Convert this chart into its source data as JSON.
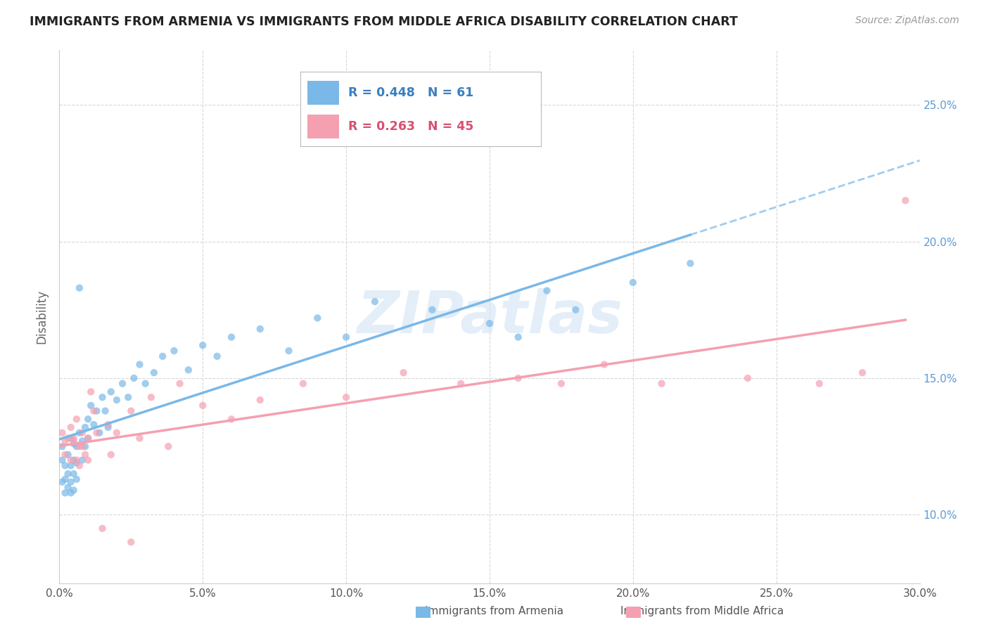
{
  "title": "IMMIGRANTS FROM ARMENIA VS IMMIGRANTS FROM MIDDLE AFRICA DISABILITY CORRELATION CHART",
  "source": "Source: ZipAtlas.com",
  "ylabel": "Disability",
  "xlim": [
    0.0,
    0.3
  ],
  "ylim": [
    0.075,
    0.27
  ],
  "xticks": [
    0.0,
    0.05,
    0.1,
    0.15,
    0.2,
    0.25,
    0.3
  ],
  "xtick_labels": [
    "0.0%",
    "5.0%",
    "10.0%",
    "15.0%",
    "20.0%",
    "25.0%",
    "30.0%"
  ],
  "yticks": [
    0.1,
    0.15,
    0.2,
    0.25
  ],
  "ytick_labels": [
    "10.0%",
    "15.0%",
    "20.0%",
    "25.0%"
  ],
  "color_armenia": "#7ab8e8",
  "color_middle_africa": "#f4a0b0",
  "R_armenia": 0.448,
  "N_armenia": 61,
  "R_middle_africa": 0.263,
  "N_middle_africa": 45,
  "legend_label_armenia": "Immigrants from Armenia",
  "legend_label_middle_africa": "Immigrants from Middle Africa",
  "watermark": "ZIPatlas",
  "background_color": "#ffffff",
  "grid_color": "#d8d8d8",
  "armenia_x": [
    0.001,
    0.001,
    0.001,
    0.002,
    0.002,
    0.002,
    0.003,
    0.003,
    0.003,
    0.004,
    0.004,
    0.004,
    0.004,
    0.005,
    0.005,
    0.005,
    0.005,
    0.006,
    0.006,
    0.006,
    0.007,
    0.007,
    0.008,
    0.008,
    0.009,
    0.009,
    0.01,
    0.01,
    0.011,
    0.012,
    0.013,
    0.014,
    0.015,
    0.016,
    0.017,
    0.018,
    0.02,
    0.022,
    0.024,
    0.026,
    0.028,
    0.03,
    0.033,
    0.036,
    0.04,
    0.045,
    0.05,
    0.055,
    0.06,
    0.07,
    0.08,
    0.09,
    0.1,
    0.11,
    0.13,
    0.15,
    0.16,
    0.17,
    0.18,
    0.2,
    0.22
  ],
  "armenia_y": [
    0.125,
    0.12,
    0.112,
    0.118,
    0.113,
    0.108,
    0.122,
    0.115,
    0.11,
    0.128,
    0.118,
    0.112,
    0.108,
    0.126,
    0.12,
    0.115,
    0.109,
    0.125,
    0.119,
    0.113,
    0.183,
    0.13,
    0.127,
    0.12,
    0.132,
    0.125,
    0.135,
    0.128,
    0.14,
    0.133,
    0.138,
    0.13,
    0.143,
    0.138,
    0.132,
    0.145,
    0.142,
    0.148,
    0.143,
    0.15,
    0.155,
    0.148,
    0.152,
    0.158,
    0.16,
    0.153,
    0.162,
    0.158,
    0.165,
    0.168,
    0.16,
    0.172,
    0.165,
    0.178,
    0.175,
    0.17,
    0.165,
    0.182,
    0.175,
    0.185,
    0.192
  ],
  "middle_africa_x": [
    0.001,
    0.002,
    0.002,
    0.003,
    0.004,
    0.004,
    0.005,
    0.006,
    0.007,
    0.008,
    0.009,
    0.01,
    0.011,
    0.012,
    0.013,
    0.015,
    0.017,
    0.02,
    0.025,
    0.028,
    0.032,
    0.038,
    0.042,
    0.05,
    0.06,
    0.07,
    0.085,
    0.1,
    0.12,
    0.14,
    0.16,
    0.175,
    0.19,
    0.21,
    0.24,
    0.265,
    0.28,
    0.295,
    0.005,
    0.006,
    0.007,
    0.008,
    0.01,
    0.018,
    0.025
  ],
  "middle_africa_y": [
    0.13,
    0.127,
    0.122,
    0.128,
    0.132,
    0.12,
    0.128,
    0.135,
    0.125,
    0.13,
    0.122,
    0.128,
    0.145,
    0.138,
    0.13,
    0.095,
    0.133,
    0.13,
    0.138,
    0.128,
    0.143,
    0.125,
    0.148,
    0.14,
    0.135,
    0.142,
    0.148,
    0.143,
    0.152,
    0.148,
    0.15,
    0.148,
    0.155,
    0.148,
    0.15,
    0.148,
    0.152,
    0.215,
    0.127,
    0.12,
    0.118,
    0.125,
    0.12,
    0.122,
    0.09
  ]
}
